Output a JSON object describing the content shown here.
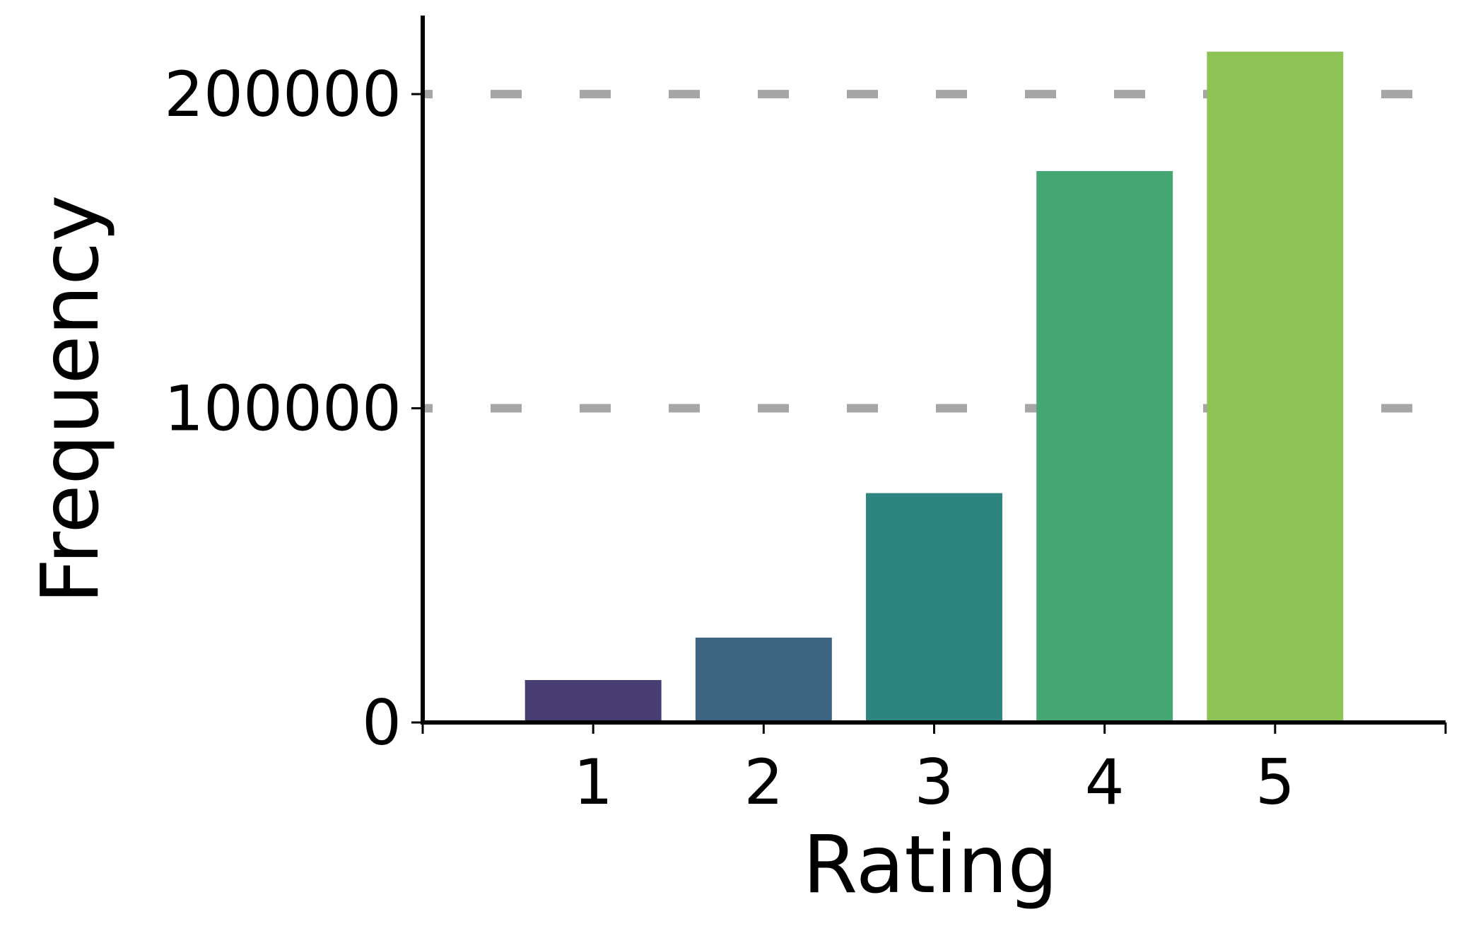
{
  "chart_data": {
    "type": "bar",
    "title": "",
    "xlabel": "Rating",
    "ylabel": "Frequency",
    "categories": [
      "1",
      "2",
      "3",
      "4",
      "5"
    ],
    "values": [
      13500,
      27000,
      73000,
      175500,
      213500
    ],
    "bar_colors": [
      "#483d73",
      "#3d6480",
      "#2e847e",
      "#46a674",
      "#8ec356"
    ],
    "xlim": [
      0,
      6
    ],
    "ylim": [
      0,
      225000
    ],
    "yticks": [
      0,
      100000,
      200000
    ],
    "ytick_labels": [
      "0",
      "100000",
      "200000"
    ],
    "grid": {
      "axis": "y",
      "style": "dashed",
      "color": "#a6a6a6",
      "enabled": true
    },
    "legend": "none"
  }
}
